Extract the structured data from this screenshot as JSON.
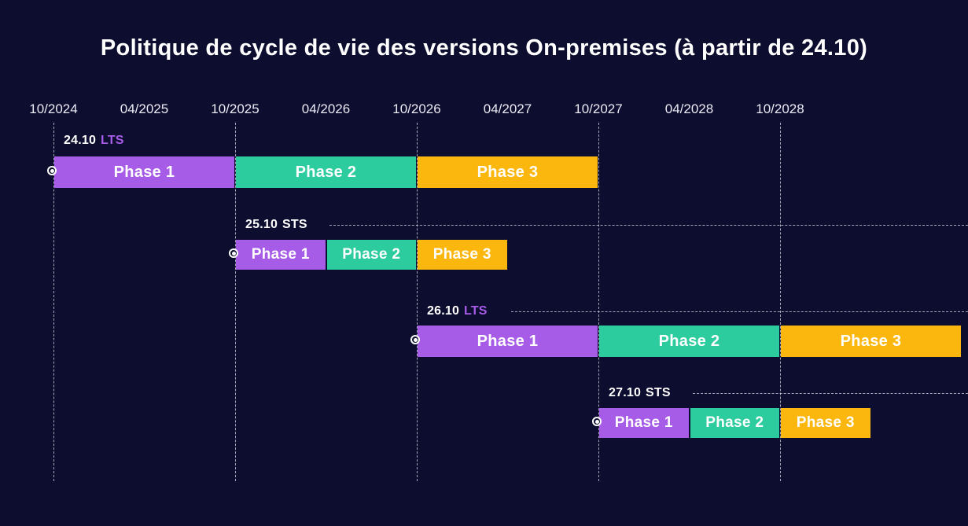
{
  "colors": {
    "bg": "#0d0d2f",
    "phase1": "#a75ce8",
    "phase2": "#2dcc9f",
    "phase3": "#fcb70f",
    "lts": "#a75ce8",
    "sts": "#ffffff",
    "grid": "#d8d8e8",
    "text": "#ffffff"
  },
  "chart_data": {
    "type": "gantt",
    "title": "Politique de cycle de vie des versions On-premises (à partir de 24.10)",
    "xlabel": "",
    "ylabel": "",
    "legend": "none",
    "grid": "dashed vertical lines at each October tick",
    "time_axis": [
      "10/2024",
      "04/2025",
      "10/2025",
      "04/2026",
      "10/2026",
      "04/2027",
      "10/2027",
      "04/2028",
      "10/2028"
    ],
    "gridlines": [
      "10/2024",
      "10/2025",
      "10/2026",
      "10/2027",
      "10/2028"
    ],
    "releases": [
      {
        "version": "24.10",
        "channel": "LTS",
        "start": "10/2024",
        "phases": [
          {
            "label": "Phase 1",
            "start": "10/2024",
            "end": "10/2025",
            "color_key": "phase1"
          },
          {
            "label": "Phase 2",
            "start": "10/2025",
            "end": "10/2026",
            "color_key": "phase2"
          },
          {
            "label": "Phase 3",
            "start": "10/2026",
            "end": "10/2027",
            "color_key": "phase3"
          }
        ]
      },
      {
        "version": "25.10",
        "channel": "STS",
        "start": "10/2025",
        "phases": [
          {
            "label": "Phase 1",
            "start": "10/2025",
            "end": "04/2026",
            "color_key": "phase1"
          },
          {
            "label": "Phase 2",
            "start": "04/2026",
            "end": "10/2026",
            "color_key": "phase2"
          },
          {
            "label": "Phase 3",
            "start": "10/2026",
            "end": "04/2027",
            "color_key": "phase3"
          }
        ]
      },
      {
        "version": "26.10",
        "channel": "LTS",
        "start": "10/2026",
        "phases": [
          {
            "label": "Phase 1",
            "start": "10/2026",
            "end": "10/2027",
            "color_key": "phase1"
          },
          {
            "label": "Phase 2",
            "start": "10/2027",
            "end": "10/2028",
            "color_key": "phase2"
          },
          {
            "label": "Phase 3",
            "start": "10/2028",
            "end": "10/2029",
            "color_key": "phase3"
          }
        ]
      },
      {
        "version": "27.10",
        "channel": "STS",
        "start": "10/2027",
        "phases": [
          {
            "label": "Phase 1",
            "start": "10/2027",
            "end": "04/2028",
            "color_key": "phase1"
          },
          {
            "label": "Phase 2",
            "start": "04/2028",
            "end": "10/2028",
            "color_key": "phase2"
          },
          {
            "label": "Phase 3",
            "start": "10/2028",
            "end": "04/2029",
            "color_key": "phase3"
          }
        ]
      }
    ]
  }
}
